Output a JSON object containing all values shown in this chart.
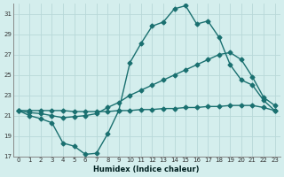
{
  "title": "",
  "xlabel": "Humidex (Indice chaleur)",
  "background_color": "#d4eeed",
  "grid_color": "#b8d8d8",
  "line_color": "#1a7070",
  "ylim": [
    17,
    32
  ],
  "xlim": [
    -0.5,
    23.5
  ],
  "yticks": [
    17,
    19,
    21,
    23,
    25,
    27,
    29,
    31
  ],
  "xticks": [
    0,
    1,
    2,
    3,
    4,
    5,
    6,
    7,
    8,
    9,
    10,
    11,
    12,
    13,
    14,
    15,
    16,
    17,
    18,
    19,
    20,
    21,
    22,
    23
  ],
  "series": [
    {
      "x": [
        0,
        1,
        2,
        3,
        4,
        5,
        6,
        7,
        8,
        9,
        10,
        11,
        12,
        13,
        14,
        15,
        16,
        17,
        18,
        19,
        20,
        21,
        22,
        23
      ],
      "y": [
        21.5,
        21.0,
        20.7,
        20.3,
        18.3,
        18.0,
        17.2,
        17.3,
        19.2,
        21.5,
        26.2,
        28.1,
        29.8,
        30.2,
        31.5,
        31.8,
        30.0,
        30.3,
        28.7,
        26.0,
        24.5,
        24.0,
        22.5,
        21.5
      ],
      "marker": "D",
      "markersize": 2.5,
      "linewidth": 1.0
    },
    {
      "x": [
        0,
        1,
        2,
        3,
        4,
        5,
        6,
        7,
        8,
        9,
        10,
        11,
        12,
        13,
        14,
        15,
        16,
        17,
        18,
        19,
        20,
        21,
        22,
        23
      ],
      "y": [
        21.5,
        21.3,
        21.2,
        21.0,
        20.8,
        20.9,
        21.0,
        21.2,
        21.8,
        22.3,
        23.0,
        23.5,
        24.0,
        24.5,
        25.0,
        25.5,
        26.0,
        26.5,
        27.0,
        27.2,
        26.5,
        24.8,
        22.8,
        22.0
      ],
      "marker": "D",
      "markersize": 2.5,
      "linewidth": 1.0
    },
    {
      "x": [
        0,
        1,
        2,
        3,
        4,
        5,
        6,
        7,
        8,
        9,
        10,
        11,
        12,
        13,
        14,
        15,
        16,
        17,
        18,
        19,
        20,
        21,
        22,
        23
      ],
      "y": [
        21.5,
        21.5,
        21.5,
        21.5,
        21.5,
        21.4,
        21.4,
        21.4,
        21.4,
        21.5,
        21.5,
        21.6,
        21.6,
        21.7,
        21.7,
        21.8,
        21.8,
        21.9,
        21.9,
        22.0,
        22.0,
        22.0,
        21.8,
        21.5
      ],
      "marker": "D",
      "markersize": 2.5,
      "linewidth": 1.0
    }
  ]
}
